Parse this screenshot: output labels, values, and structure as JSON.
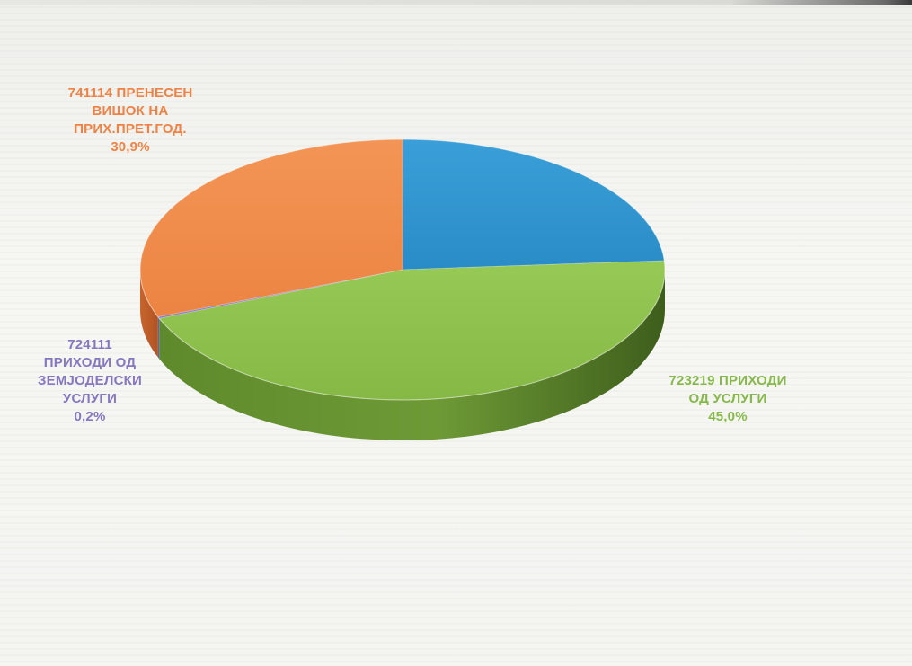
{
  "chart_data": {
    "type": "pie",
    "style": "3d",
    "legend": "none",
    "slices": [
      {
        "name_lines": [
          "741114 ПРЕНЕСЕН",
          "ВИШОК НА",
          "ПРИХ.ПРЕТ.ГОД."
        ],
        "value_label": "30,9%",
        "value": 30.9,
        "color": "#f0894a"
      },
      {
        "name_lines": [
          "724111",
          "ПРИХОДИ ОД",
          "ЗЕМЈОДЕЛСКИ",
          "УСЛУГИ"
        ],
        "value_label": "0,2%",
        "value": 0.2,
        "color": "#8a7cc4"
      },
      {
        "name_lines": [
          "723219 ПРИХОДИ",
          "ОД УСЛУГИ"
        ],
        "value_label": "45,0%",
        "value": 45.0,
        "color": "#8dc04c"
      },
      {
        "value": 23.9,
        "color": "#2f95cf"
      }
    ]
  }
}
